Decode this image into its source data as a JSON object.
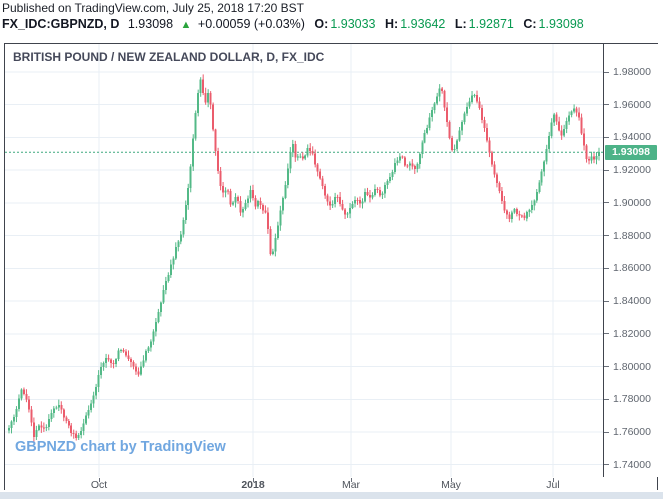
{
  "header": {
    "published_line": "Published on TradingView.com, July 25, 2018 17:20 BST",
    "symbol": "FX_IDC:GBPNZD, D",
    "last_price": "1.93098",
    "arrow": "▲",
    "change": "+0.00059 (+0.03%)",
    "o_label": "O:",
    "o_value": "1.93033",
    "h_label": "H:",
    "h_value": "1.93642",
    "l_label": "L:",
    "l_value": "1.92871",
    "c_label": "C:",
    "c_value": "1.93098"
  },
  "chart": {
    "title": "BRITISH POUND / NEW ZEALAND DOLLAR, D, FX_IDC",
    "watermark": "GBPNZD chart by TradingView",
    "price_tag": "1.93098"
  },
  "colors": {
    "up": "#53b987",
    "down": "#eb5c6c",
    "grid": "#e9eff5",
    "frame": "#40444d",
    "axis_text": "#60666f",
    "last_price_line": "#3fa87e",
    "tag_bg": "#4db388",
    "value_green": "#089950",
    "arrow_green": "#2aa33c",
    "watermark_blue": "#71a7e0"
  },
  "chart_data": {
    "type": "candlestick",
    "title": "BRITISH POUND / NEW ZEALAND DOLLAR, D, FX_IDC",
    "symbol": "GBPNZD",
    "timeframe": "D",
    "source": "FX_IDC",
    "last": {
      "open": 1.93033,
      "high": 1.93642,
      "low": 1.92871,
      "close": 1.93098,
      "change": "+0.00059",
      "change_pct": "+0.03%"
    },
    "y_range": [
      1.7325,
      1.9971
    ],
    "y_ticks": [
      {
        "p": 1.98,
        "label": "1.98000"
      },
      {
        "p": 1.96,
        "label": "1.96000"
      },
      {
        "p": 1.94,
        "label": "1.94000"
      },
      {
        "p": 1.92,
        "label": "1.92000"
      },
      {
        "p": 1.9,
        "label": "1.90000"
      },
      {
        "p": 1.88,
        "label": "1.88000"
      },
      {
        "p": 1.86,
        "label": "1.86000"
      },
      {
        "p": 1.84,
        "label": "1.84000"
      },
      {
        "p": 1.82,
        "label": "1.82000"
      },
      {
        "p": 1.8,
        "label": "1.80000"
      },
      {
        "p": 1.78,
        "label": "1.78000"
      },
      {
        "p": 1.76,
        "label": "1.76000"
      },
      {
        "p": 1.74,
        "label": "1.74000"
      }
    ],
    "x_ticks": [
      {
        "label": "Oct",
        "t": 0.1525,
        "bold": false
      },
      {
        "label": "2018",
        "t": 0.4136,
        "bold": true
      },
      {
        "label": "Mar",
        "t": 0.5797,
        "bold": false
      },
      {
        "label": "May",
        "t": 0.7492,
        "bold": false
      },
      {
        "label": "Jul",
        "t": 0.922,
        "bold": false
      }
    ],
    "last_price": 1.93098,
    "candle_count": 238,
    "close_anchors": [
      [
        0.0,
        1.763
      ],
      [
        0.01,
        1.77
      ],
      [
        0.02,
        1.786
      ],
      [
        0.031,
        1.779
      ],
      [
        0.042,
        1.758
      ],
      [
        0.051,
        1.764
      ],
      [
        0.061,
        1.761
      ],
      [
        0.071,
        1.772
      ],
      [
        0.085,
        1.776
      ],
      [
        0.095,
        1.768
      ],
      [
        0.105,
        1.76
      ],
      [
        0.117,
        1.756
      ],
      [
        0.131,
        1.77
      ],
      [
        0.142,
        1.78
      ],
      [
        0.153,
        1.796
      ],
      [
        0.164,
        1.806
      ],
      [
        0.176,
        1.8
      ],
      [
        0.186,
        1.81
      ],
      [
        0.198,
        1.808
      ],
      [
        0.209,
        1.8
      ],
      [
        0.219,
        1.795
      ],
      [
        0.229,
        1.806
      ],
      [
        0.241,
        1.816
      ],
      [
        0.251,
        1.83
      ],
      [
        0.261,
        1.845
      ],
      [
        0.271,
        1.858
      ],
      [
        0.281,
        1.87
      ],
      [
        0.292,
        1.882
      ],
      [
        0.298,
        1.895
      ],
      [
        0.305,
        1.912
      ],
      [
        0.312,
        1.938
      ],
      [
        0.319,
        1.965
      ],
      [
        0.325,
        1.975
      ],
      [
        0.332,
        1.96
      ],
      [
        0.339,
        1.97
      ],
      [
        0.346,
        1.945
      ],
      [
        0.353,
        1.922
      ],
      [
        0.361,
        1.905
      ],
      [
        0.37,
        1.91
      ],
      [
        0.376,
        1.898
      ],
      [
        0.385,
        1.905
      ],
      [
        0.393,
        1.893
      ],
      [
        0.402,
        1.9
      ],
      [
        0.41,
        1.908
      ],
      [
        0.417,
        1.898
      ],
      [
        0.424,
        1.902
      ],
      [
        0.43,
        1.896
      ],
      [
        0.437,
        1.892
      ],
      [
        0.444,
        1.864
      ],
      [
        0.451,
        1.877
      ],
      [
        0.458,
        1.892
      ],
      [
        0.466,
        1.905
      ],
      [
        0.473,
        1.922
      ],
      [
        0.48,
        1.938
      ],
      [
        0.486,
        1.925
      ],
      [
        0.493,
        1.93
      ],
      [
        0.5,
        1.925
      ],
      [
        0.507,
        1.935
      ],
      [
        0.514,
        1.93
      ],
      [
        0.52,
        1.922
      ],
      [
        0.529,
        1.913
      ],
      [
        0.537,
        1.903
      ],
      [
        0.546,
        1.898
      ],
      [
        0.554,
        1.905
      ],
      [
        0.563,
        1.898
      ],
      [
        0.571,
        1.893
      ],
      [
        0.58,
        1.898
      ],
      [
        0.588,
        1.903
      ],
      [
        0.597,
        1.9
      ],
      [
        0.605,
        1.907
      ],
      [
        0.614,
        1.903
      ],
      [
        0.622,
        1.91
      ],
      [
        0.631,
        1.904
      ],
      [
        0.639,
        1.912
      ],
      [
        0.648,
        1.918
      ],
      [
        0.656,
        1.925
      ],
      [
        0.664,
        1.93
      ],
      [
        0.673,
        1.922
      ],
      [
        0.681,
        1.925
      ],
      [
        0.688,
        1.92
      ],
      [
        0.695,
        1.928
      ],
      [
        0.703,
        1.94
      ],
      [
        0.712,
        1.95
      ],
      [
        0.722,
        1.962
      ],
      [
        0.732,
        1.972
      ],
      [
        0.739,
        1.958
      ],
      [
        0.746,
        1.94
      ],
      [
        0.753,
        1.93
      ],
      [
        0.759,
        1.938
      ],
      [
        0.766,
        1.948
      ],
      [
        0.773,
        1.955
      ],
      [
        0.78,
        1.962
      ],
      [
        0.788,
        1.967
      ],
      [
        0.797,
        1.958
      ],
      [
        0.803,
        1.95
      ],
      [
        0.81,
        1.938
      ],
      [
        0.817,
        1.925
      ],
      [
        0.824,
        1.915
      ],
      [
        0.831,
        1.907
      ],
      [
        0.839,
        1.896
      ],
      [
        0.848,
        1.89
      ],
      [
        0.856,
        1.896
      ],
      [
        0.864,
        1.893
      ],
      [
        0.873,
        1.89
      ],
      [
        0.881,
        1.896
      ],
      [
        0.89,
        1.902
      ],
      [
        0.898,
        1.912
      ],
      [
        0.907,
        1.925
      ],
      [
        0.915,
        1.94
      ],
      [
        0.924,
        1.955
      ],
      [
        0.931,
        1.945
      ],
      [
        0.937,
        1.94
      ],
      [
        0.944,
        1.948
      ],
      [
        0.951,
        1.955
      ],
      [
        0.959,
        1.958
      ],
      [
        0.966,
        1.952
      ],
      [
        0.973,
        1.938
      ],
      [
        0.98,
        1.925
      ],
      [
        0.986,
        1.928
      ],
      [
        0.993,
        1.926
      ],
      [
        1.0,
        1.93098
      ]
    ]
  }
}
